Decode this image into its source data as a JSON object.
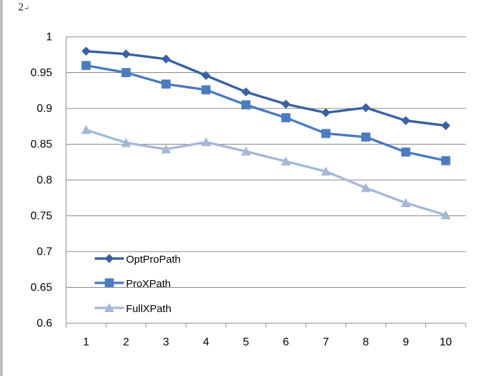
{
  "page_mark": {
    "number": "2",
    "return_glyph": "↵"
  },
  "chart_data": {
    "type": "line",
    "title": "",
    "xlabel": "",
    "ylabel": "",
    "categories": [
      "1",
      "2",
      "3",
      "4",
      "5",
      "6",
      "7",
      "8",
      "9",
      "10"
    ],
    "ylim": [
      0.6,
      1.0
    ],
    "yticks": [
      "0.6",
      "0.65",
      "0.7",
      "0.75",
      "0.8",
      "0.85",
      "0.9",
      "0.95",
      "1"
    ],
    "grid": "horizontal",
    "legend_position": "lower-left inside",
    "series": [
      {
        "name": "OptProPath",
        "color": "#3a62a0",
        "marker": "diamond",
        "values": [
          0.98,
          0.976,
          0.969,
          0.946,
          0.923,
          0.906,
          0.894,
          0.901,
          0.883,
          0.876
        ]
      },
      {
        "name": "ProXPath",
        "color": "#4a7cbf",
        "marker": "square",
        "values": [
          0.96,
          0.95,
          0.934,
          0.926,
          0.905,
          0.887,
          0.865,
          0.86,
          0.839,
          0.827
        ]
      },
      {
        "name": "FullXPath",
        "color": "#a6b8d7",
        "marker": "triangle",
        "values": [
          0.87,
          0.852,
          0.843,
          0.853,
          0.84,
          0.826,
          0.812,
          0.789,
          0.768,
          0.751
        ]
      }
    ]
  }
}
